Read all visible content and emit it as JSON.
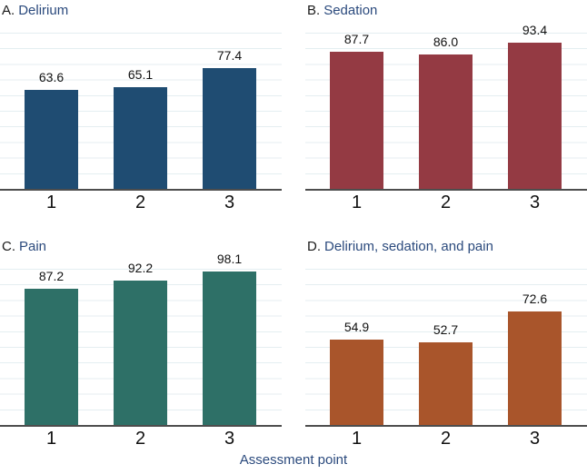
{
  "figure": {
    "xlabel": "Assessment point",
    "background": "#FFFFFF",
    "title_color": "#2B4A7D",
    "xlabel_color": "#2B4A7D",
    "gridline_color": "#E4EEF1",
    "axis_color": "#4D4D4D",
    "text_color": "#111111"
  },
  "chart_data": [
    {
      "type": "bar",
      "panel_label": "A.",
      "title": "Delirium",
      "categories": [
        "1",
        "2",
        "3"
      ],
      "values": [
        63.6,
        65.1,
        77.4
      ],
      "value_labels": [
        "63.6",
        "65.1",
        "77.4"
      ],
      "bar_color": "#1F4C72",
      "ylim": [
        0,
        105
      ],
      "grid": true,
      "legend": false
    },
    {
      "type": "bar",
      "panel_label": "B.",
      "title": "Sedation",
      "categories": [
        "1",
        "2",
        "3"
      ],
      "values": [
        87.7,
        86.0,
        93.4
      ],
      "value_labels": [
        "87.7",
        "86.0",
        "93.4"
      ],
      "bar_color": "#943A43",
      "ylim": [
        0,
        105
      ],
      "grid": true,
      "legend": false
    },
    {
      "type": "bar",
      "panel_label": "C.",
      "title": "Pain",
      "categories": [
        "1",
        "2",
        "3"
      ],
      "values": [
        87.2,
        92.2,
        98.1
      ],
      "value_labels": [
        "87.2",
        "92.2",
        "98.1"
      ],
      "bar_color": "#2E7067",
      "ylim": [
        0,
        105
      ],
      "grid": true,
      "legend": false
    },
    {
      "type": "bar",
      "panel_label": "D.",
      "title": "Delirium, sedation, and pain",
      "categories": [
        "1",
        "2",
        "3"
      ],
      "values": [
        54.9,
        52.7,
        72.6
      ],
      "value_labels": [
        "54.9",
        "52.7",
        "72.6"
      ],
      "bar_color": "#A9552B",
      "ylim": [
        0,
        105
      ],
      "grid": true,
      "legend": false
    }
  ]
}
